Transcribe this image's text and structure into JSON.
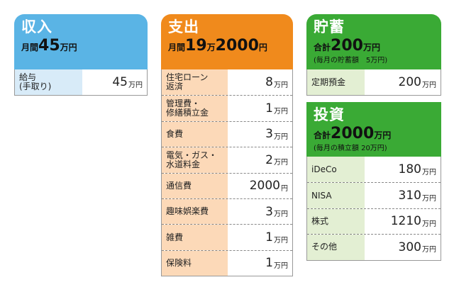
{
  "colors": {
    "income": "#5ab4e5",
    "expense": "#f08a1c",
    "savings": "#3aaa35",
    "investment": "#3aaa35"
  },
  "income": {
    "title": "収入",
    "sum_prefix": "月間",
    "sum_value": "45",
    "sum_unit": "万円",
    "items": [
      {
        "label": "給与\n(手取り)",
        "value": "45",
        "unit": "万円"
      }
    ]
  },
  "expense": {
    "title": "支出",
    "sum_prefix": "月間",
    "sum_value": "19",
    "sum_unit": "万",
    "sum_value2": "2000",
    "sum_unit2": "円",
    "items": [
      {
        "label": "住宅ローン\n返済",
        "value": "8",
        "unit": "万円"
      },
      {
        "label": "管理費・\n修繕積立金",
        "value": "1",
        "unit": "万円"
      },
      {
        "label": "食費",
        "value": "3",
        "unit": "万円"
      },
      {
        "label": "電気・ガス・\n水道料金",
        "value": "2",
        "unit": "万円"
      },
      {
        "label": "通信費",
        "value": "2000",
        "unit": "円"
      },
      {
        "label": "趣味娯楽費",
        "value": "3",
        "unit": "万円"
      },
      {
        "label": "雑費",
        "value": "1",
        "unit": "万円"
      },
      {
        "label": "保険料",
        "value": "1",
        "unit": "万円"
      }
    ]
  },
  "savings": {
    "title": "貯蓄",
    "sum_prefix": "合計",
    "sum_value": "200",
    "sum_unit": "万円",
    "note": "(毎月の貯蓄額　5万円)",
    "items": [
      {
        "label": "定期預金",
        "value": "200",
        "unit": "万円"
      }
    ]
  },
  "investment": {
    "title": "投資",
    "sum_prefix": "合計",
    "sum_value": "2000",
    "sum_unit": "万円",
    "note": "(毎月の積立額 20万円)",
    "items": [
      {
        "label": "iDeCo",
        "value": "180",
        "unit": "万円"
      },
      {
        "label": "NISA",
        "value": "310",
        "unit": "万円"
      },
      {
        "label": "株式",
        "value": "1210",
        "unit": "万円"
      },
      {
        "label": "その他",
        "value": "300",
        "unit": "万円"
      }
    ]
  }
}
